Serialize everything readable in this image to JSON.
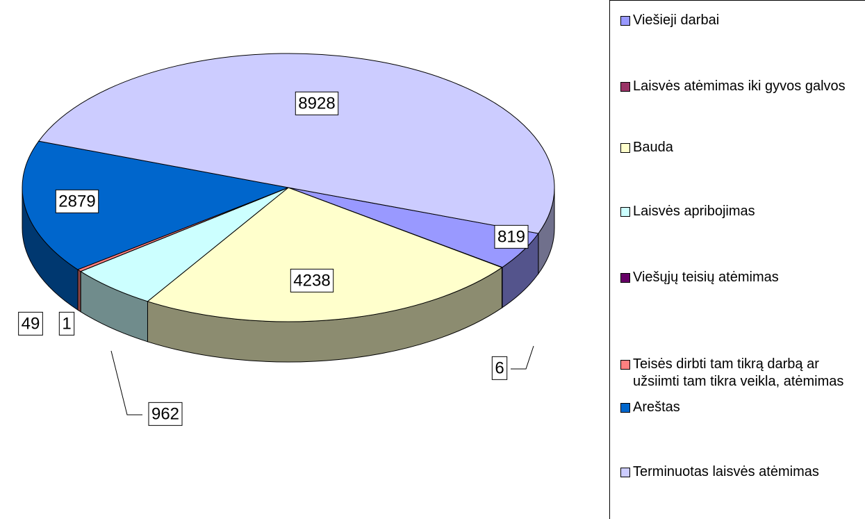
{
  "chart_data": {
    "type": "pie",
    "categories": [
      "Viešieji darbai",
      "Laisvės atėmimas iki gyvos galvos",
      "Bauda",
      "Laisvės apribojimas",
      "Viešųjų teisių atėmimas",
      "Teisės dirbti tam tikrą darbą ar užsiimti tam tikra  veikla, atėmimas",
      "Areštas",
      "Terminuotas laisvės atėmimas"
    ],
    "values": [
      819,
      6,
      4238,
      962,
      1,
      49,
      2879,
      8928
    ],
    "colors": [
      "#9999ff",
      "#993366",
      "#ffffcc",
      "#ccffff",
      "#660066",
      "#ff8080",
      "#0066cc",
      "#ccccff"
    ],
    "legend": "right"
  }
}
